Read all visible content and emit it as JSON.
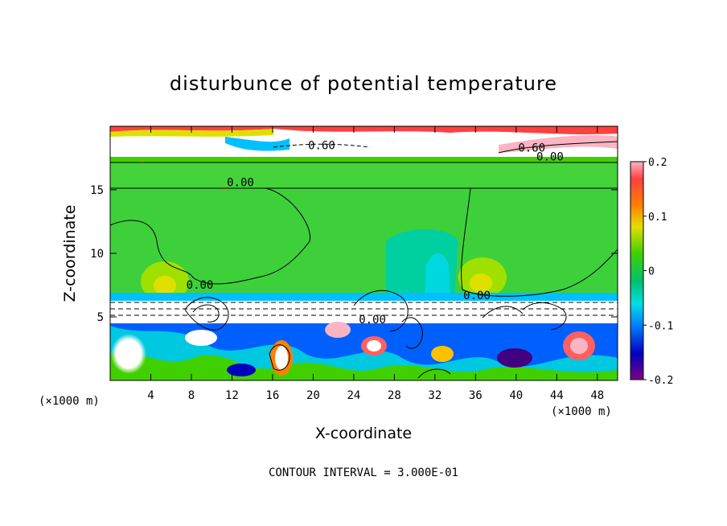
{
  "chart_data": {
    "type": "heatmap",
    "title": "disturbunce of potential temperature",
    "xlabel": "X-coordinate",
    "ylabel": "Z-coordinate",
    "x_unit_left": "(×1000 m)",
    "x_unit_right": "(×1000 m)",
    "xlim": [
      0,
      50
    ],
    "ylim": [
      0,
      20
    ],
    "xticks": [
      4,
      8,
      12,
      16,
      20,
      24,
      28,
      32,
      36,
      40,
      44,
      48
    ],
    "yticks": [
      5,
      10,
      15
    ],
    "colorbar": {
      "min": -0.2,
      "max": 0.2,
      "ticks": [
        0.2,
        0.1,
        0,
        -0.1,
        -0.2
      ],
      "tick_labels": [
        "0.2",
        "0.1",
        "0",
        "-0.1",
        "-0.2"
      ],
      "colors": [
        "#fbb4c4",
        "#ff6060",
        "#ff0000",
        "#ff8000",
        "#ffc000",
        "#e0e000",
        "#a0e000",
        "#40d000",
        "#00c060",
        "#00e0c0",
        "#00c0ff",
        "#0080ff",
        "#0040e0",
        "#0000c0",
        "#400080",
        "#800080"
      ]
    },
    "contour_labels": [
      {
        "text": "0.60",
        "x": 19.5,
        "y": 18.2
      },
      {
        "text": "0.60",
        "x": 40.2,
        "y": 18.0
      },
      {
        "text": "0.00",
        "x": 42.0,
        "y": 17.3
      },
      {
        "text": "0.00",
        "x": 11.5,
        "y": 15.3
      },
      {
        "text": "0.00",
        "x": 7.5,
        "y": 7.2
      },
      {
        "text": "0.00",
        "x": 34.8,
        "y": 6.4
      },
      {
        "text": "0.00",
        "x": 24.5,
        "y": 4.5
      }
    ],
    "contour_interval_label": "CONTOUR INTERVAL = 3.000E-01"
  }
}
